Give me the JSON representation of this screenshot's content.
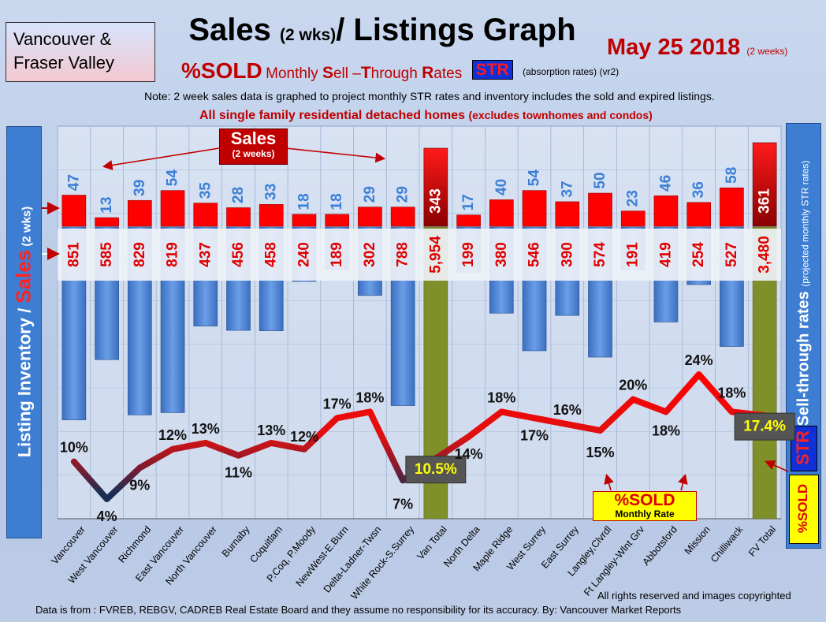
{
  "header": {
    "region_line1": "Vancouver &",
    "region_line2": "Fraser Valley",
    "title_main": "Sales ",
    "title_small": "(2 wks)",
    "title_tail": "/ Listings Graph",
    "date": "May 25 2018",
    "date_note": "(2 weeks)",
    "sold_label": "%SOLD",
    "str_long_prefix": "Monthly ",
    "str_long_s": "S",
    "str_long_mid1": "ell –",
    "str_long_t": "T",
    "str_long_mid2": "hrough ",
    "str_long_r": "R",
    "str_long_end": "ates",
    "str_badge": "STR",
    "absorption": "(absorption rates) (vr2)",
    "note": "Note: 2 week sales data is graphed to project monthly STR rates and inventory includes the sold and expired listings.",
    "scope_main": "All single family residential detached homes ",
    "scope_small": "(excludes townhomes and condos)"
  },
  "axes": {
    "left_label_a": "Listing Inventory / ",
    "left_label_sales": "Sales",
    "left_label_small": " (2 wks)",
    "right_label_main": "Sell-through rates ",
    "right_label_small": "(projected monthly STR rates)",
    "right_str_badge": "STR",
    "right_sold_badge": "%SOLD"
  },
  "annotations": {
    "sales_callout": "Sales",
    "sales_callout_small": "(2 weeks)",
    "sold_monthly": "%SOLD",
    "sold_monthly_small": "Monthly Rate"
  },
  "footer": {
    "copyright": "All rights reserved and  images copyrighted",
    "source": "Data is from : FVREB, REBGV, CADREB Real Estate Board and they assume no responsibility for its accuracy. By: Vancouver Market Reports"
  },
  "colors": {
    "sales_bar": "#ff0000",
    "inventory_bar": "#4f86d6",
    "total_bar": "#7f8f2a",
    "str_line_high": "#ff0000",
    "str_line_low": "#1c2d55"
  },
  "chart_data": {
    "type": "bar",
    "categories": [
      "Vancouver",
      "West Vancouver",
      "Richmond",
      "East Vancouver",
      "North Vancouver",
      "Burnaby",
      "Coquitlam",
      "P.Coq, P.Moody",
      "NewWest-E.Burn",
      "Delta-Ladner-Twsn",
      "White Rock-S.Surrey",
      "Van Total",
      "North Delta",
      "Maple Ridge",
      "West Surrey",
      "East Surrey",
      "Langley,Clvrdl",
      "Ft Langley-Wlnt Grv",
      "Abbotsford",
      "Mission",
      "Chilliwack",
      "FV Total"
    ],
    "series": [
      {
        "name": "Sales",
        "values": [
          47,
          13,
          39,
          54,
          35,
          28,
          33,
          18,
          18,
          29,
          29,
          343,
          17,
          40,
          54,
          37,
          50,
          23,
          46,
          36,
          58,
          361
        ]
      },
      {
        "name": "Listing Inventory",
        "values": [
          851,
          585,
          829,
          819,
          437,
          456,
          458,
          240,
          189,
          302,
          788,
          5954,
          199,
          380,
          546,
          390,
          574,
          191,
          419,
          254,
          527,
          3480
        ]
      },
      {
        "name": "STR",
        "values": [
          10,
          4,
          9,
          12,
          13,
          11,
          13,
          12,
          17,
          18,
          7,
          10.5,
          14,
          18,
          17,
          16,
          15,
          20,
          18,
          24,
          18,
          17.4
        ]
      }
    ],
    "labels": {
      "sales": [
        "47",
        "13",
        "39",
        "54",
        "35",
        "28",
        "33",
        "18",
        "18",
        "29",
        "29",
        "343",
        "17",
        "40",
        "54",
        "37",
        "50",
        "23",
        "46",
        "36",
        "58",
        "361"
      ],
      "inventory": [
        "851",
        "585",
        "829",
        "819",
        "437",
        "456",
        "458",
        "240",
        "189",
        "302",
        "788",
        "5,954",
        "199",
        "380",
        "546",
        "390",
        "574",
        "191",
        "419",
        "254",
        "527",
        "3,480"
      ],
      "str": [
        "10%",
        "4%",
        "9%",
        "12%",
        "13%",
        "11%",
        "13%",
        "12%",
        "17%",
        "18%",
        "7%",
        "10.5%",
        "14%",
        "18%",
        "17%",
        "16%",
        "15%",
        "20%",
        "18%",
        "24%",
        "18%",
        "17.4%"
      ]
    },
    "total_categories": [
      11,
      21
    ],
    "grid": true
  }
}
